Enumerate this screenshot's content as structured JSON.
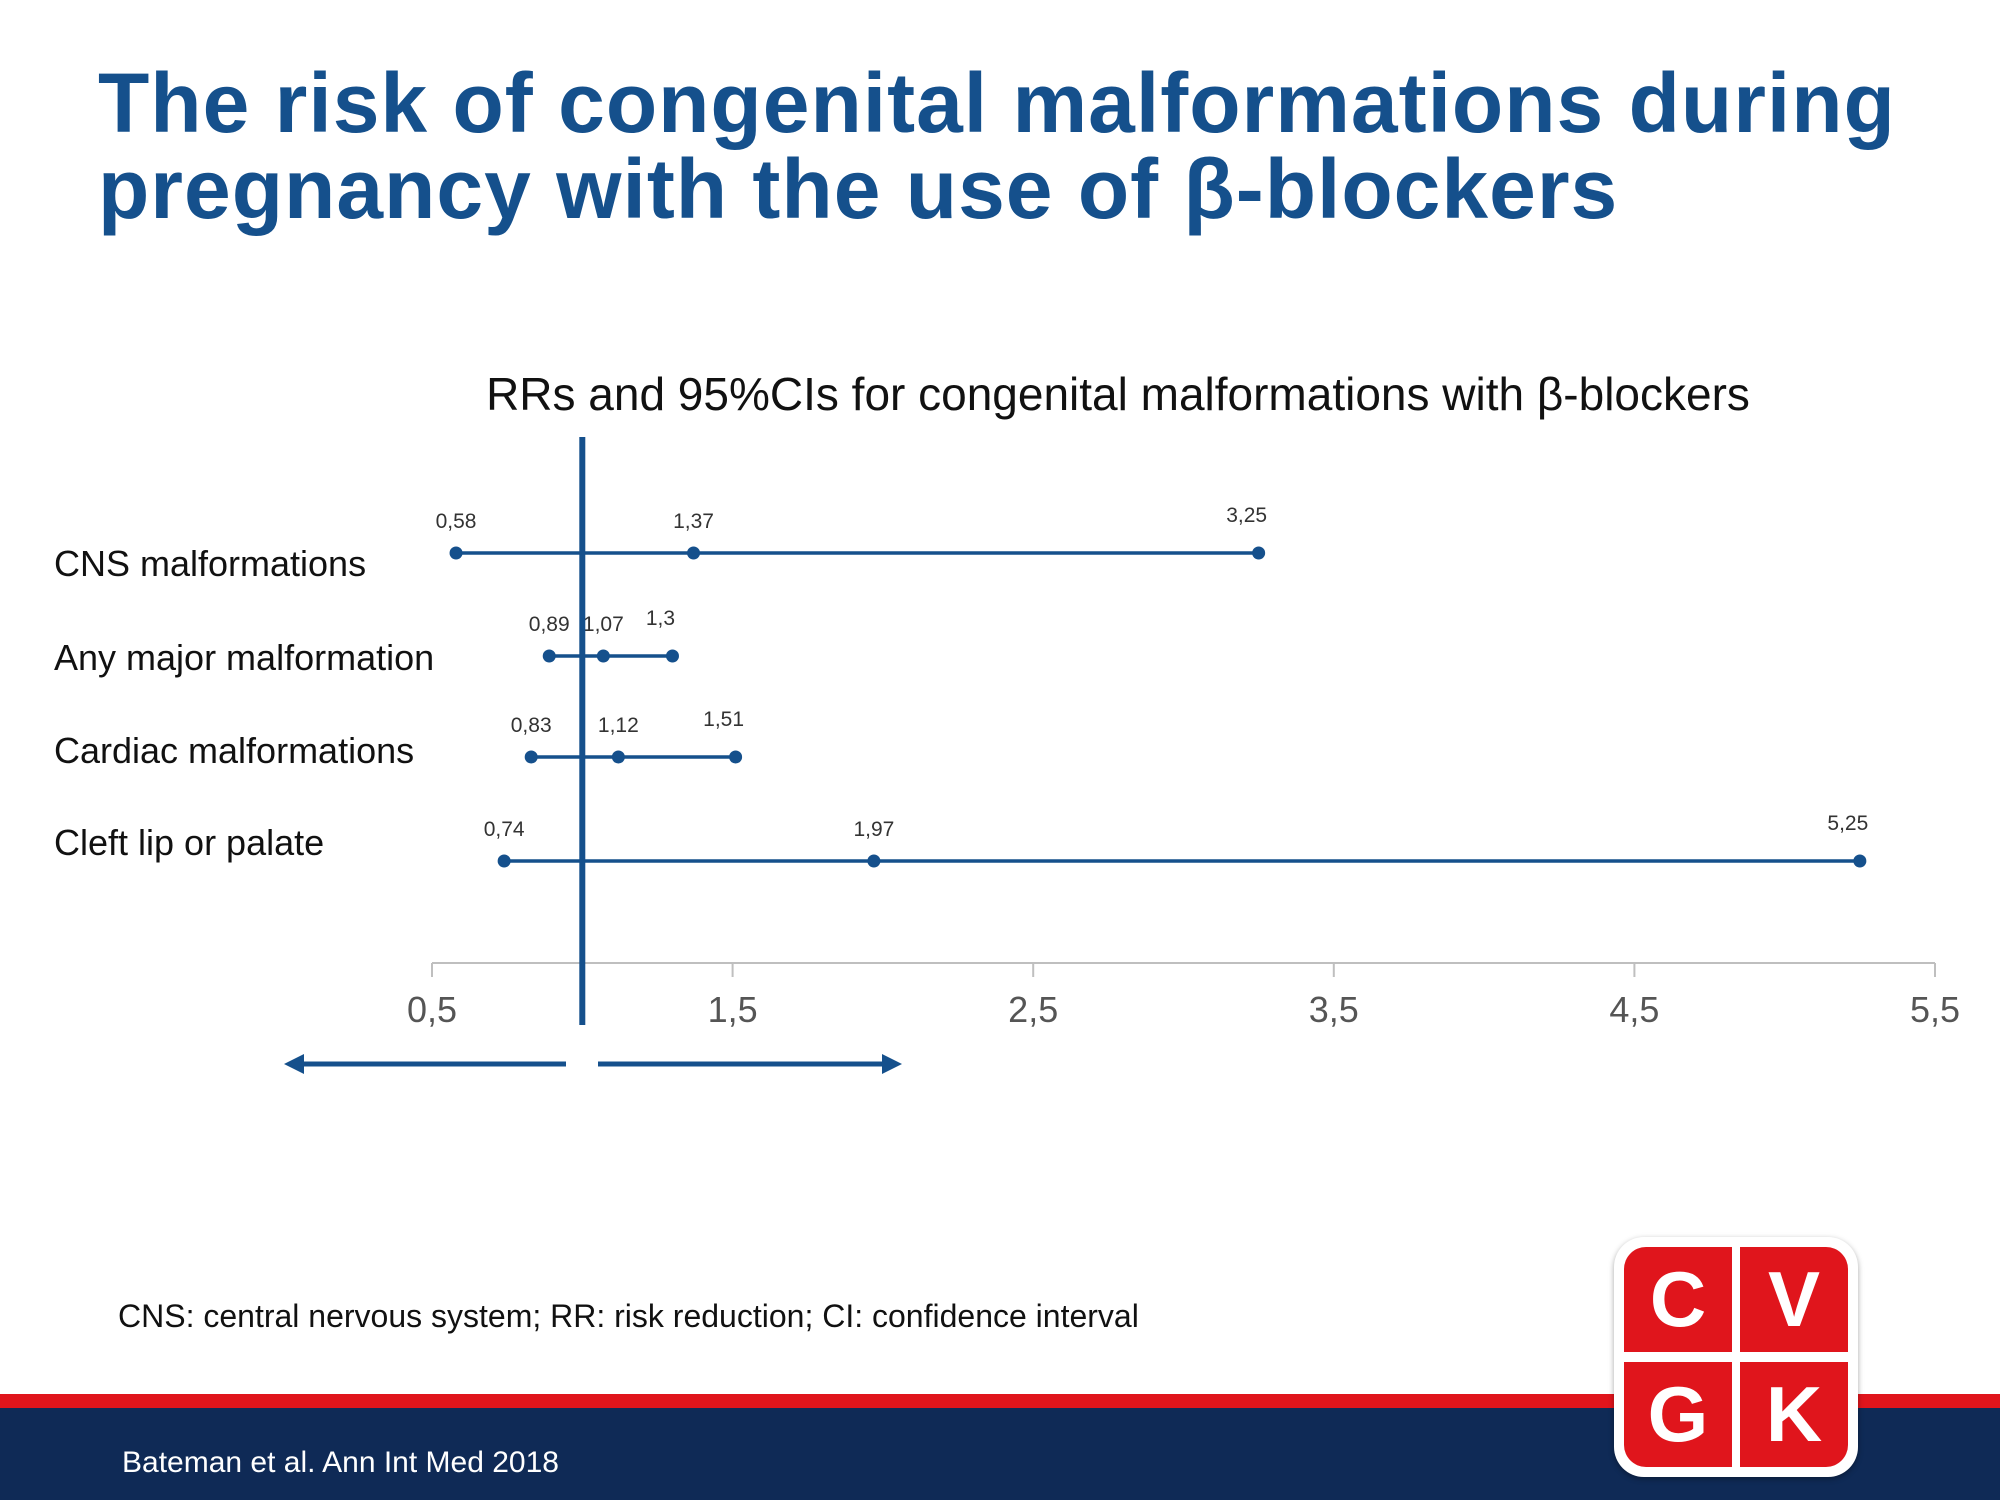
{
  "slide": {
    "title_line1": "The risk of congenital malformations during",
    "title_line2": "pregnancy with the use of β-blockers",
    "footnote": "CNS: central nervous system; RR: risk reduction; CI: confidence interval",
    "citation": "Bateman et al. Ann Int Med 2018"
  },
  "logo": {
    "letters": [
      "C",
      "V",
      "G",
      "K"
    ],
    "color": "#e0151c"
  },
  "colors": {
    "title": "#15508c",
    "series": "#15508c",
    "axis": "#bfbfbf",
    "footer_bar": "#0f2a56",
    "stripe": "#e0151c"
  },
  "chart_data": {
    "type": "forest",
    "title": "RRs and 95%CIs for congenital malformations with β-blockers",
    "x_ticks": [
      "0,5",
      "1,5",
      "2,5",
      "3,5",
      "4,5",
      "5,5"
    ],
    "x_tick_values": [
      0.5,
      1.5,
      2.5,
      3.5,
      4.5,
      5.5
    ],
    "xlim": [
      0.5,
      5.5
    ],
    "reference_line": 1.0,
    "direction_arrows": [
      "left",
      "right"
    ],
    "rows": [
      {
        "label": "CNS malformations",
        "lower": 0.58,
        "estimate": 1.37,
        "upper": 3.25,
        "lower_label": "0,58",
        "estimate_label": "1,37",
        "upper_label": "3,25"
      },
      {
        "label": "Any major malformation",
        "lower": 0.89,
        "estimate": 1.07,
        "upper": 1.3,
        "lower_label": "0,89",
        "estimate_label": "1,07",
        "upper_label": "1,3"
      },
      {
        "label": "Cardiac malformations",
        "lower": 0.83,
        "estimate": 1.12,
        "upper": 1.51,
        "lower_label": "0,83",
        "estimate_label": "1,12",
        "upper_label": "1,51"
      },
      {
        "label": "Cleft lip or palate",
        "lower": 0.74,
        "estimate": 1.97,
        "upper": 5.25,
        "lower_label": "0,74",
        "estimate_label": "1,97",
        "upper_label": "5,25"
      }
    ]
  }
}
